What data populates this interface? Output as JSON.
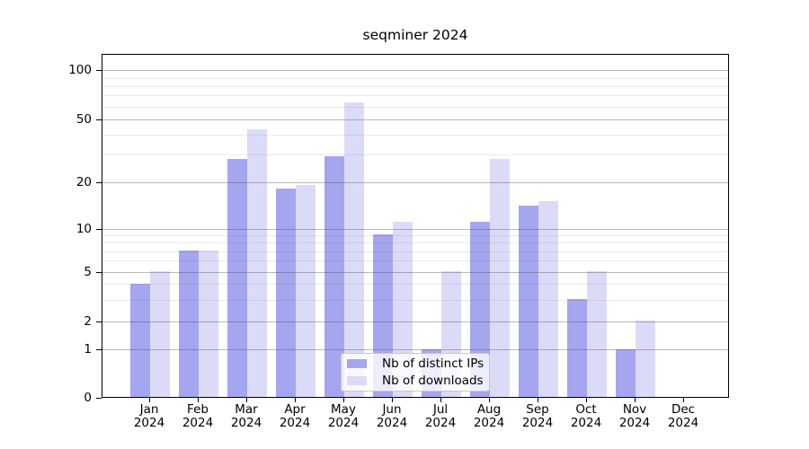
{
  "chart_data": {
    "type": "bar",
    "title": "seqminer 2024",
    "months": [
      "Jan",
      "Feb",
      "Mar",
      "Apr",
      "May",
      "Jun",
      "Jul",
      "Aug",
      "Sep",
      "Oct",
      "Nov",
      "Dec"
    ],
    "year_label": "2024",
    "series": [
      {
        "name": "Nb of distinct IPs",
        "color": "#a5a5f0",
        "values": [
          4,
          7,
          28,
          18,
          29,
          9,
          1,
          11,
          14,
          3,
          1,
          0
        ]
      },
      {
        "name": "Nb of downloads",
        "color": "#dbdbf8",
        "values": [
          5,
          7,
          43,
          19,
          63,
          11,
          5,
          28,
          15,
          5,
          2,
          0
        ]
      }
    ],
    "y_axis": {
      "scale": "log-like with 0 baseline",
      "tick_labels": [
        "100",
        "50",
        "20",
        "10",
        "5",
        "2",
        "1",
        "0"
      ],
      "tick_values": [
        100,
        50,
        20,
        10,
        5,
        2,
        1,
        0
      ],
      "minor_gridline_values": [
        3,
        4,
        6,
        7,
        8,
        9,
        30,
        40,
        60,
        70,
        80,
        90
      ],
      "range": [
        0,
        100
      ]
    },
    "grid": "on",
    "legend_position": "bottom-center-inside"
  }
}
